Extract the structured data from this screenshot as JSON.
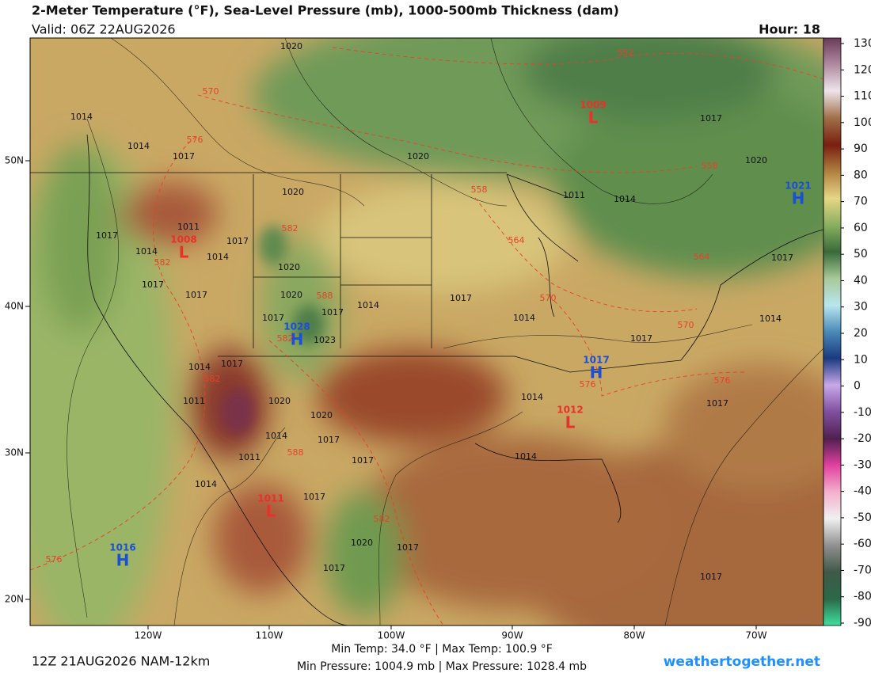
{
  "header": {
    "title": "2-Meter Temperature (°F), Sea-Level Pressure (mb), 1000-500mb Thickness (dam)",
    "valid": "Valid: 06Z 22AUG2026",
    "hour": "Hour: 18"
  },
  "colorbar": {
    "ticks": [
      130,
      120,
      110,
      100,
      90,
      80,
      70,
      60,
      50,
      40,
      30,
      20,
      10,
      0,
      -10,
      -20,
      -30,
      -40,
      -50,
      -60,
      -70,
      -80,
      -90
    ]
  },
  "axes": {
    "lat_labels": [
      "50N",
      "40N",
      "30N",
      "20N"
    ],
    "lon_labels": [
      "120W",
      "110W",
      "100W",
      "90W",
      "80W",
      "70W"
    ]
  },
  "pressure_centers": [
    {
      "type": "L",
      "value": "1009"
    },
    {
      "type": "H",
      "value": "1021"
    },
    {
      "type": "L",
      "value": "1008"
    },
    {
      "type": "H",
      "value": "1028"
    },
    {
      "type": "H",
      "value": "1017"
    },
    {
      "type": "L",
      "value": "1012"
    },
    {
      "type": "L",
      "value": "1011"
    },
    {
      "type": "H",
      "value": "1016"
    }
  ],
  "isobar_labels": [
    "1020",
    "1014",
    "1014",
    "1017",
    "1020",
    "1020",
    "1011",
    "1014",
    "1017",
    "1020",
    "1017",
    "1011",
    "1014",
    "1014",
    "1017",
    "1020",
    "1017",
    "1017",
    "1020",
    "1014",
    "1017",
    "1014",
    "1017",
    "1017",
    "1023",
    "1014",
    "1017",
    "1011",
    "1020",
    "1020",
    "1014",
    "1017",
    "1017",
    "1011",
    "1014",
    "1017",
    "1020",
    "1017",
    "1017",
    "1014",
    "1014",
    "1017",
    "1014",
    "1017",
    "1017",
    "1017"
  ],
  "thickness_labels": [
    "552",
    "570",
    "576",
    "558",
    "558",
    "564",
    "564",
    "582",
    "582",
    "588",
    "570",
    "570",
    "582",
    "582",
    "576",
    "576",
    "588",
    "582",
    "576"
  ],
  "footer": {
    "run": "12Z 21AUG2026 NAM-12km",
    "temp_range": "Min Temp:  34.0 °F | Max Temp: 100.9 °F",
    "pressure_range": "Min Pressure: 1004.9 mb | Max Pressure: 1028.4 mb",
    "site": "weathertogether.net"
  }
}
